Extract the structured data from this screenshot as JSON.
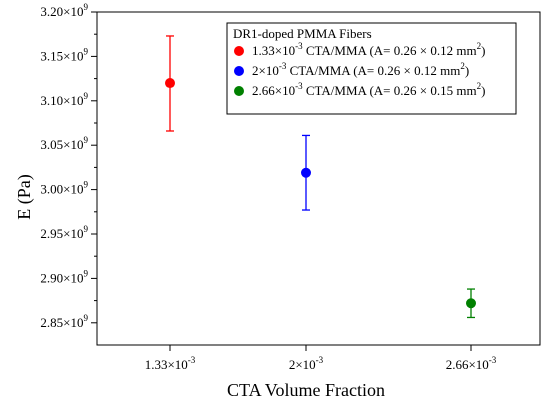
{
  "chart_data": {
    "type": "scatter",
    "xlabel": "CTA Volume Fraction",
    "ylabel": "E (Pa)",
    "ylim": [
      2.825,
      3.2
    ],
    "y_exponent": "9",
    "y_ticks": [
      {
        "value": 2.85,
        "mantissa": "2.85×10"
      },
      {
        "value": 2.9,
        "mantissa": "2.90×10"
      },
      {
        "value": 2.95,
        "mantissa": "2.95×10"
      },
      {
        "value": 3.0,
        "mantissa": "3.00×10"
      },
      {
        "value": 3.05,
        "mantissa": "3.05×10"
      },
      {
        "value": 3.1,
        "mantissa": "3.10×10"
      },
      {
        "value": 3.15,
        "mantissa": "3.15×10"
      },
      {
        "value": 3.2,
        "mantissa": "3.20×10"
      }
    ],
    "categories": [
      {
        "mantissa": "1.33×10",
        "exp": "-3"
      },
      {
        "mantissa": "2×10",
        "exp": "-3"
      },
      {
        "mantissa": "2.66×10",
        "exp": "-3"
      }
    ],
    "legend": {
      "title": "DR1-doped PMMA Fibers",
      "placement": "top-right"
    },
    "series": [
      {
        "name_parts": [
          "1.33×10",
          "-3",
          " CTA/MMA (A= 0.26 × 0.12 mm",
          "2",
          ")"
        ],
        "color": "#ff0000",
        "category_index": 0,
        "y": 3.12,
        "err_low": 3.066,
        "err_high": 3.173
      },
      {
        "name_parts": [
          "2×10",
          "-3",
          " CTA/MMA (A= 0.26 × 0.12 mm",
          "2",
          ")"
        ],
        "color": "#0000ff",
        "category_index": 1,
        "y": 3.019,
        "err_low": 2.977,
        "err_high": 3.061
      },
      {
        "name_parts": [
          "2.66×10",
          "-3",
          " CTA/MMA (A= 0.26 × 0.15 mm",
          "2",
          ")"
        ],
        "color": "#008000",
        "category_index": 2,
        "y": 2.872,
        "err_low": 2.856,
        "err_high": 2.888
      }
    ]
  }
}
